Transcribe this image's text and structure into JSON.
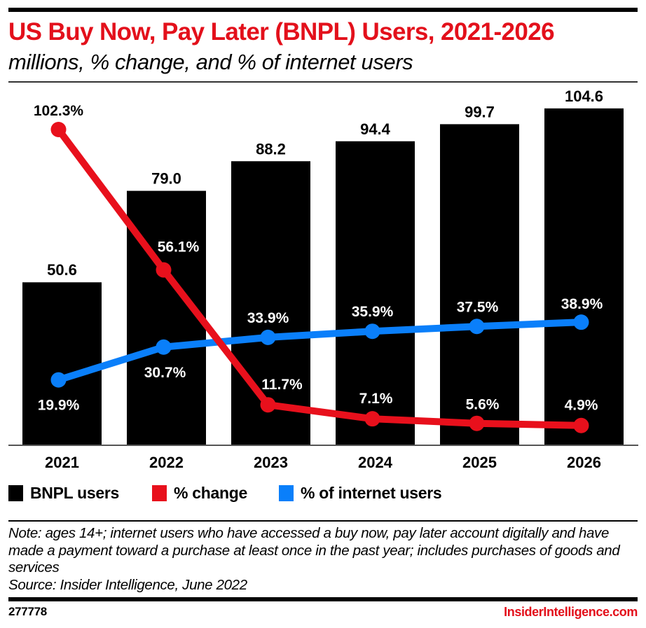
{
  "header": {
    "title": "US Buy Now, Pay Later (BNPL) Users, 2021-2026",
    "subtitle": "millions, % change, and % of internet users"
  },
  "colors": {
    "bars": "#000000",
    "pct_change": "#e8101c",
    "pct_internet": "#0a7ffa",
    "title": "#e3101b"
  },
  "chart_data": {
    "type": "bar",
    "title": "US Buy Now, Pay Later (BNPL) Users, 2021-2026",
    "subtitle": "millions, % change, and % of internet users",
    "xlabel": "",
    "ylabel": "",
    "categories": [
      "2021",
      "2022",
      "2023",
      "2024",
      "2025",
      "2026"
    ],
    "bar_ylim": [
      0,
      115
    ],
    "line_ylim": [
      0,
      110
    ],
    "grid": false,
    "legend_position": "bottom-left",
    "series": [
      {
        "name": "BNPL users",
        "type": "bar",
        "color": "#000000",
        "values": [
          50.6,
          79.0,
          88.2,
          94.4,
          99.7,
          104.6
        ],
        "labels": [
          "50.6",
          "79.0",
          "88.2",
          "94.4",
          "99.7",
          "104.6"
        ]
      },
      {
        "name": "% change",
        "type": "line",
        "color": "#e8101c",
        "values": [
          102.3,
          56.1,
          11.7,
          7.1,
          5.6,
          4.9
        ],
        "labels": [
          "102.3%",
          "56.1%",
          "11.7%",
          "7.1%",
          "5.6%",
          "4.9%"
        ]
      },
      {
        "name": "% of internet users",
        "type": "line",
        "color": "#0a7ffa",
        "values": [
          19.9,
          30.7,
          33.9,
          35.9,
          37.5,
          38.9
        ],
        "labels": [
          "19.9%",
          "30.7%",
          "33.9%",
          "35.9%",
          "37.5%",
          "38.9%"
        ]
      }
    ]
  },
  "legend": [
    {
      "label": "BNPL users",
      "color": "#000000"
    },
    {
      "label": "% change",
      "color": "#e8101c"
    },
    {
      "label": "% of internet users",
      "color": "#0a7ffa"
    }
  ],
  "footer": {
    "note": "Note: ages 14+; internet users who have accessed a buy now, pay later account digitally and have made a payment toward a purchase at least once in the past year; includes purchases of goods and services",
    "source": "Source: Insider Intelligence, June 2022",
    "chart_id": "277778",
    "brand": "InsiderIntelligence.com"
  }
}
